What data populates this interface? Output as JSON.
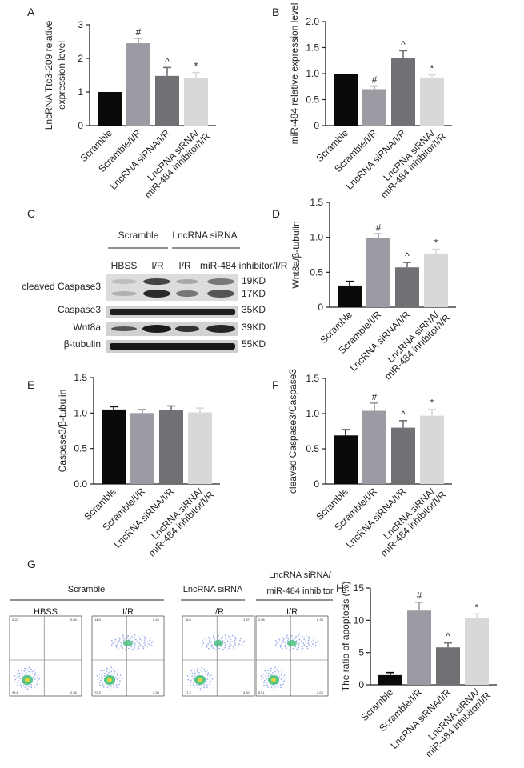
{
  "category_colors": [
    "#0a0a0a",
    "#9b9ba3",
    "#707075",
    "#d8d8d8"
  ],
  "panel_letters": {
    "a": "A",
    "b": "B",
    "c": "C",
    "d": "D",
    "e": "E",
    "f": "F",
    "g": "G",
    "h": "H"
  },
  "chart_data": [
    {
      "panel": "A",
      "type": "bar",
      "ylabel": "LncRNA Ttc3-209 relative expression level",
      "ylabel_lines": [
        "LncRNA Ttc3-209 relative",
        "expression level"
      ],
      "ylim": [
        0,
        3
      ],
      "yticks": [
        0,
        1,
        2,
        3
      ],
      "categories": [
        "Scramble",
        "Scramble/I/R",
        "LncRNA siRNA/I/R",
        "LncRNA siRNA/ miR-484 inhibitor/I/R"
      ],
      "category_lines": [
        [
          "Scramble"
        ],
        [
          "Scramble/I/R"
        ],
        [
          "LncRNA siRNA/I/R"
        ],
        [
          "LncRNA siRNA/",
          "miR-484 inhibitor/I/R"
        ]
      ],
      "values": [
        1.0,
        2.45,
        1.48,
        1.43
      ],
      "errors": [
        0,
        0.15,
        0.25,
        0.15
      ],
      "significance": [
        "",
        "#",
        "^",
        "*"
      ]
    },
    {
      "panel": "B",
      "type": "bar",
      "ylabel": "miR-484 relative expression level",
      "ylabel_lines": [
        "miR-484 relative expression level"
      ],
      "ylim": [
        0,
        2.0
      ],
      "yticks": [
        "0",
        "0.5",
        "1.0",
        "1.5",
        "2.0"
      ],
      "categories": [
        "Scramble",
        "Scramble/I/R",
        "LncRNA siRNA/I/R",
        "LncRNA siRNA/ miR-484 inhibitor/I/R"
      ],
      "category_lines": [
        [
          "Scramble"
        ],
        [
          "Scramble/I/R"
        ],
        [
          "LncRNA siRNA/I/R"
        ],
        [
          "LncRNA siRNA/",
          "miR-484 inhibitor/I/R"
        ]
      ],
      "values": [
        1.0,
        0.7,
        1.3,
        0.92
      ],
      "errors": [
        0,
        0.06,
        0.14,
        0.06
      ],
      "significance": [
        "",
        "#",
        "^",
        "*"
      ]
    },
    {
      "panel": "D",
      "type": "bar",
      "ylabel": "Wnt8a/β-tubulin",
      "ylabel_lines": [
        "Wnt8a/β-tubulin"
      ],
      "ylim": [
        0,
        1.5
      ],
      "yticks": [
        "0",
        "0.5",
        "1.0",
        "1.5"
      ],
      "categories": [
        "Scramble",
        "Scramble/I/R",
        "LncRNA siRNA/I/R",
        "LncRNA siRNA/ miR-484 inhibitor/I/R"
      ],
      "category_lines": [
        [
          "Scramble"
        ],
        [
          "Scramble/I/R"
        ],
        [
          "LncRNA siRNA/I/R"
        ],
        [
          "LncRNA siRNA/",
          "miR-484 inhibitor/I/R"
        ]
      ],
      "values": [
        0.31,
        0.99,
        0.57,
        0.77
      ],
      "errors": [
        0.06,
        0.06,
        0.07,
        0.06
      ],
      "significance": [
        "",
        "#",
        "^",
        "*"
      ]
    },
    {
      "panel": "E",
      "type": "bar",
      "ylabel": "Caspase3/β-tubulin",
      "ylabel_lines": [
        "Caspase3/β-tubulin"
      ],
      "ylim": [
        0,
        1.5
      ],
      "yticks": [
        "0.0",
        "0.5",
        "1.0",
        "1.5"
      ],
      "categories": [
        "Scramble",
        "Scramble/I/R",
        "LncRNA siRNA/I/R",
        "LncRNA siRNA/ miR-484 inhibitor/I/R"
      ],
      "category_lines": [
        [
          "Scramble"
        ],
        [
          "Scramble/I/R"
        ],
        [
          "LncRNA siRNA/I/R"
        ],
        [
          "LncRNA siRNA/",
          "miR-484 inhibitor/I/R"
        ]
      ],
      "values": [
        1.05,
        1.0,
        1.04,
        1.01
      ],
      "errors": [
        0.04,
        0.05,
        0.06,
        0.06
      ],
      "significance": [
        "",
        "",
        "",
        ""
      ]
    },
    {
      "panel": "F",
      "type": "bar",
      "ylabel": "cleaved Caspase3/Caspase3",
      "ylabel_lines": [
        "cleaved Caspase3/Caspase3"
      ],
      "ylim": [
        0,
        1.5
      ],
      "yticks": [
        "0",
        "0.5",
        "1.0",
        "1.5"
      ],
      "categories": [
        "Scramble",
        "Scramble/I/R",
        "LncRNA siRNA/I/R",
        "LncRNA siRNA/ miR-484 inhibitor/I/R"
      ],
      "category_lines": [
        [
          "Scramble"
        ],
        [
          "Scramble/I/R"
        ],
        [
          "LncRNA siRNA/I/R"
        ],
        [
          "LncRNA siRNA/",
          "miR-484 inhibitor/I/R"
        ]
      ],
      "values": [
        0.69,
        1.04,
        0.8,
        0.97
      ],
      "errors": [
        0.08,
        0.11,
        0.1,
        0.09
      ],
      "significance": [
        "",
        "#",
        "^",
        "*"
      ]
    },
    {
      "panel": "H",
      "type": "bar",
      "ylabel": "The ratio of apoptosis (%)",
      "ylabel_lines": [
        "The ratio of apoptosis (%)"
      ],
      "ylim": [
        0,
        15
      ],
      "yticks": [
        "0",
        "5",
        "10",
        "15"
      ],
      "categories": [
        "Scramble",
        "Scramble/I/R",
        "LncRNA siRNA/I/R",
        "LncRNA siRNA/ miR-484 inhibitor/I/R"
      ],
      "category_lines": [
        [
          "Scramble"
        ],
        [
          "Scramble/I/R"
        ],
        [
          "LncRNA siRNA/I/R"
        ],
        [
          "LncRNA siRNA/",
          "miR-484 inhibitor/I/R"
        ]
      ],
      "values": [
        1.5,
        11.5,
        5.8,
        10.3
      ],
      "errors": [
        0.4,
        1.3,
        0.7,
        0.7
      ],
      "significance": [
        "",
        "#",
        "^",
        "*"
      ]
    }
  ],
  "western_blot": {
    "group1": "Scramble",
    "group2": "LncRNA siRNA",
    "lanes": [
      "HBSS",
      "I/R",
      "I/R",
      "miR-484 inhibitor/I/R"
    ],
    "proteins": [
      "cleaved Caspase3",
      "Caspase3",
      "Wnt8a",
      "β-tubulin"
    ],
    "sizes": [
      "19KD",
      "17KD",
      "35KD",
      "39KD",
      "55KD"
    ]
  },
  "flow_cytometry": {
    "group1": "Scramble",
    "group2": "LncRNA siRNA",
    "group3_lines": [
      "LncRNA siRNA/",
      "miR-484 inhibitor"
    ],
    "plots": [
      {
        "title": "HBSS",
        "q1": "0.22",
        "q2": "0.89",
        "q3": "0.36",
        "q4": "98.8"
      },
      {
        "title": "I/R",
        "q1": "14.5",
        "q2": "9.43",
        "q3": "2.98",
        "q4": "72.3"
      },
      {
        "title": "I/R",
        "q1": "18.0",
        "q2": "1.67",
        "q3": "3.92",
        "q4": "77.2"
      },
      {
        "title": "I/R",
        "q1": "2.96",
        "q2": "6.35",
        "q3": "2.03",
        "q4": "87.1"
      }
    ]
  }
}
